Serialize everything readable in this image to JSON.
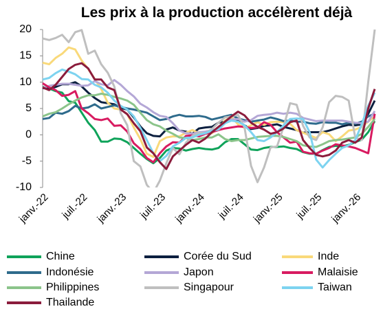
{
  "chart_data": {
    "type": "line",
    "title": "Les prix à la production accélèrent déjà",
    "categories": [
      "janv.-22",
      null,
      null,
      null,
      null,
      null,
      "juil.-22",
      null,
      null,
      null,
      null,
      null,
      "janv.-23",
      null,
      null,
      null,
      null,
      null,
      "juil.-23",
      null,
      null,
      null,
      null,
      null,
      "janv.-24",
      null,
      null,
      null,
      null,
      null,
      "juil.-24",
      null,
      null,
      null,
      null,
      null,
      "janv.-25",
      null,
      null,
      null,
      null,
      null,
      "juil.-25",
      null,
      null,
      null,
      null,
      null,
      "janv.-26",
      null,
      null,
      null
    ],
    "ylim": [
      -10,
      20
    ],
    "yticks": [
      -10,
      -5,
      0,
      5,
      10,
      15,
      20
    ],
    "series": [
      {
        "name": "Chine",
        "color": "#0fa35a",
        "values": [
          9.1,
          8.8,
          8.3,
          8.0,
          6.4,
          6.1,
          4.2,
          2.3,
          0.9,
          -1.3,
          -1.3,
          -0.7,
          -0.8,
          -1.4,
          -2.5,
          -3.6,
          -4.6,
          -5.4,
          -4.4,
          -3.0,
          -2.5,
          -2.6,
          -3.0,
          -2.7,
          -2.5,
          -2.7,
          -2.8,
          -2.5,
          -1.4,
          -0.8,
          -0.8,
          -1.8,
          -2.8,
          -2.9,
          -2.5,
          -2.3,
          -2.3,
          -2.2,
          -2.5,
          -2.7,
          -3.3,
          -3.6,
          -3.6,
          -2.9,
          -2.3,
          -2.1,
          -2.2,
          -1.9,
          -1.4,
          -0.9,
          0.5,
          2.6
        ]
      },
      {
        "name": "Corée du Sud",
        "color": "#0b1f3f",
        "values": [
          8.9,
          8.7,
          9.1,
          9.6,
          9.6,
          10.0,
          9.2,
          8.0,
          7.0,
          6.2,
          6.0,
          5.8,
          5.1,
          4.8,
          3.3,
          1.6,
          0.3,
          -0.2,
          -0.3,
          1.0,
          1.4,
          0.8,
          0.6,
          0.2,
          1.2,
          1.4,
          1.5,
          2.3,
          2.5,
          2.9,
          2.6,
          1.8,
          1.1,
          1.3,
          1.7,
          1.8,
          2.0,
          1.5,
          1.2,
          0.9,
          0.4,
          0.5,
          0.5,
          0.5,
          0.8,
          1.2,
          1.6,
          1.9,
          1.8,
          2.0,
          4.0,
          6.5
        ]
      },
      {
        "name": "Inde",
        "color": "#f9d97a",
        "values": [
          13.7,
          13.4,
          14.6,
          15.4,
          16.6,
          16.2,
          14.1,
          12.5,
          10.6,
          8.7,
          6.1,
          5.0,
          4.8,
          3.9,
          1.4,
          -0.8,
          -3.6,
          -4.2,
          -1.2,
          -0.5,
          -0.3,
          -0.3,
          0.4,
          0.9,
          0.3,
          0.2,
          0.3,
          1.3,
          2.7,
          3.4,
          2.0,
          1.3,
          1.8,
          2.4,
          1.9,
          2.4,
          2.5,
          2.4,
          2.1,
          0.9,
          0.4,
          -0.1,
          -0.6,
          0.5,
          0.1,
          -1.2,
          -0.3,
          0.8,
          1.0,
          1.5,
          2.5,
          3.5
        ]
      },
      {
        "name": "Indonésie",
        "color": "#2e6b8c",
        "values": [
          3.0,
          3.2,
          4.2,
          4.0,
          4.5,
          5.5,
          5.0,
          5.2,
          5.8,
          5.0,
          5.3,
          5.6,
          5.3,
          5.0,
          4.8,
          4.5,
          4.2,
          3.5,
          2.8,
          3.0,
          3.5,
          3.8,
          3.5,
          3.5,
          3.6,
          3.4,
          2.9,
          3.2,
          3.5,
          3.8,
          3.1,
          2.8,
          2.5,
          2.7,
          2.9,
          3.3,
          3.0,
          2.6,
          2.7,
          2.5,
          2.5,
          2.2,
          2.1,
          2.4,
          2.3,
          2.3,
          2.0,
          2.3,
          2.1,
          2.5,
          3.5,
          4.0
        ]
      },
      {
        "name": "Japon",
        "color": "#b4a7d6",
        "values": [
          8.9,
          9.3,
          9.5,
          9.7,
          9.7,
          9.5,
          9.3,
          9.4,
          10.2,
          9.6,
          9.4,
          10.4,
          9.5,
          8.3,
          7.3,
          5.9,
          5.2,
          4.3,
          3.6,
          3.4,
          2.2,
          0.8,
          0.3,
          0.2,
          0.5,
          0.6,
          0.9,
          1.1,
          2.4,
          2.9,
          3.0,
          2.5,
          2.8,
          3.6,
          3.8,
          3.9,
          4.2,
          4.0,
          4.2,
          4.0,
          3.2,
          2.9,
          2.6,
          2.7,
          2.7,
          2.7,
          2.7,
          2.5,
          2.3,
          2.2,
          2.5,
          4.5
        ]
      },
      {
        "name": "Malaisie",
        "color": "#d81b60",
        "values": [
          9.8,
          9.0,
          8.5,
          7.4,
          7.6,
          8.3,
          5.0,
          4.1,
          3.0,
          2.8,
          3.1,
          1.7,
          1.8,
          0.6,
          -1.6,
          -2.7,
          -4.4,
          -5.2,
          -3.5,
          -2.2,
          -1.4,
          -1.5,
          -0.2,
          -0.1,
          -0.3,
          0.2,
          0.5,
          0.9,
          1.2,
          1.4,
          1.6,
          1.5,
          1.3,
          1.4,
          2.4,
          1.9,
          0.5,
          -0.5,
          -1.5,
          -1.3,
          -3.2,
          -3.5,
          -3.6,
          -3.0,
          -2.5,
          -1.8,
          -2.0,
          -2.2,
          -2.5,
          -3.0,
          -3.5,
          4.0
        ]
      },
      {
        "name": "Philippines",
        "color": "#8bc48a",
        "values": [
          3.5,
          4.0,
          4.3,
          5.0,
          5.8,
          6.5,
          7.1,
          7.5,
          7.5,
          7.8,
          7.6,
          7.2,
          6.9,
          6.5,
          5.7,
          4.2,
          2.8,
          2.0,
          1.6,
          0.8,
          0.2,
          -0.5,
          -0.6,
          -1.0,
          -0.8,
          -0.5,
          -0.5,
          0.1,
          -0.8,
          -1.2,
          -1.0,
          -1.0,
          -0.7,
          -0.4,
          -0.3,
          -0.2,
          -0.2,
          -0.4,
          -0.8,
          -1.2,
          -2.0,
          -2.2,
          -2.3,
          -1.8,
          -1.2,
          -1.0,
          -0.9,
          -0.7,
          -0.5,
          0.2,
          1.5,
          3.0
        ]
      },
      {
        "name": "Singapour",
        "color": "#bfbfbf",
        "values": [
          18.3,
          18.0,
          18.4,
          19.0,
          17.6,
          19.5,
          19.9,
          15.4,
          16.0,
          13.4,
          11.8,
          9.2,
          4.1,
          1.8,
          -5.0,
          -6.0,
          -9.5,
          -11.0,
          -8.7,
          -5.4,
          -2.5,
          -3.7,
          -1.5,
          -0.2,
          0.4,
          0.3,
          1.1,
          2.3,
          3.3,
          3.5,
          3.8,
          1.4,
          -5.9,
          -9.0,
          -6.2,
          -2.4,
          -2.2,
          1.5,
          6.0,
          5.7,
          1.7,
          -0.5,
          -1.0,
          1.4,
          6.2,
          7.4,
          7.2,
          6.5,
          -0.5,
          -1.0,
          10.0,
          20.0
        ]
      },
      {
        "name": "Taiwan",
        "color": "#7dd3f0",
        "values": [
          10.5,
          10.8,
          11.7,
          12.4,
          12.0,
          11.5,
          10.6,
          10.5,
          9.5,
          9.0,
          8.0,
          6.5,
          5.5,
          4.8,
          3.5,
          1.3,
          -1.0,
          -3.5,
          -5.0,
          -4.0,
          -2.2,
          -1.5,
          -0.6,
          -0.5,
          0.0,
          0.3,
          0.8,
          1.0,
          2.2,
          2.7,
          2.5,
          1.8,
          0.5,
          -1.0,
          -1.2,
          -0.5,
          0.5,
          1.8,
          3.0,
          3.1,
          3.0,
          0.5,
          -4.7,
          -6.2,
          -4.8,
          -3.6,
          -2.5,
          -2.0,
          -1.0,
          2.0,
          5.5,
          8.0
        ]
      },
      {
        "name": "Thailande",
        "color": "#8b1c3c",
        "values": [
          9.0,
          8.5,
          9.5,
          11.0,
          12.5,
          13.3,
          13.6,
          12.6,
          10.5,
          10.5,
          9.0,
          8.5,
          4.8,
          3.9,
          2.2,
          0.7,
          -2.4,
          -3.5,
          -5.2,
          -6.5,
          -4.1,
          -3.0,
          -1.9,
          -1.0,
          -1.5,
          -0.7,
          0.5,
          1.5,
          2.5,
          3.5,
          4.4,
          3.7,
          2.3,
          1.5,
          1.0,
          0.2,
          0.5,
          1.2,
          2.4,
          2.7,
          -1.0,
          -2.5,
          -3.8,
          -4.1,
          -3.8,
          -3.0,
          -1.5,
          -1.0,
          -1.5,
          -0.5,
          5.0,
          8.7
        ]
      }
    ]
  }
}
